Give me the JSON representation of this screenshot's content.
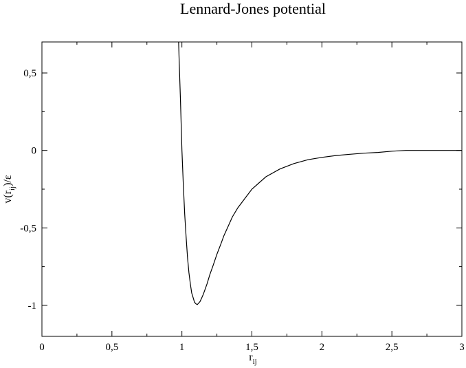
{
  "chart_data": {
    "type": "line",
    "title": "Lennard-Jones potential",
    "xlabel": {
      "base": "r",
      "sub": "ij"
    },
    "ylabel": {
      "prefix": "v(r",
      "sub": "ij",
      "suffix": ")/ε"
    },
    "xlim": [
      0,
      3
    ],
    "ylim": [
      -1.2,
      0.7
    ],
    "x_ticks": [
      {
        "value": 0,
        "label": "0"
      },
      {
        "value": 0.5,
        "label": "0,5"
      },
      {
        "value": 1,
        "label": "1"
      },
      {
        "value": 1.5,
        "label": "1,5"
      },
      {
        "value": 2,
        "label": "2"
      },
      {
        "value": 2.5,
        "label": "2,5"
      },
      {
        "value": 3,
        "label": "3"
      }
    ],
    "x_minor_ticks": [
      0.25,
      0.75,
      1.25,
      1.75,
      2.25,
      2.75
    ],
    "y_ticks": [
      {
        "value": -1,
        "label": "-1"
      },
      {
        "value": -0.5,
        "label": "-0,5"
      },
      {
        "value": 0,
        "label": "0"
      },
      {
        "value": 0.5,
        "label": "0,5"
      }
    ],
    "y_minor_ticks": [
      -0.75,
      -0.25,
      0.25
    ],
    "grid": false,
    "series": [
      {
        "x": [
          0.976,
          0.98,
          0.99,
          1.0,
          1.01,
          1.02,
          1.03,
          1.04,
          1.05,
          1.06,
          1.07,
          1.08,
          1.09,
          1.1,
          1.11,
          1.12,
          1.13,
          1.14,
          1.15,
          1.16,
          1.18,
          1.2,
          1.22,
          1.25,
          1.28,
          1.3,
          1.33,
          1.36,
          1.4,
          1.45,
          1.5,
          1.55,
          1.6,
          1.7,
          1.8,
          1.9,
          2.0,
          2.1,
          2.2,
          2.3,
          2.4,
          2.5,
          2.6,
          2.8,
          3.0
        ],
        "y": [
          0.71,
          0.59,
          0.32,
          0.0,
          -0.22,
          -0.41,
          -0.56,
          -0.69,
          -0.79,
          -0.86,
          -0.92,
          -0.95,
          -0.98,
          -0.99,
          -0.995,
          -0.985,
          -0.975,
          -0.955,
          -0.935,
          -0.91,
          -0.86,
          -0.8,
          -0.75,
          -0.67,
          -0.6,
          -0.55,
          -0.49,
          -0.43,
          -0.37,
          -0.31,
          -0.25,
          -0.21,
          -0.17,
          -0.12,
          -0.085,
          -0.06,
          -0.045,
          -0.033,
          -0.025,
          -0.018,
          -0.013,
          -0.005,
          0.0,
          0.0,
          0.0
        ],
        "color": "#000000"
      }
    ]
  }
}
